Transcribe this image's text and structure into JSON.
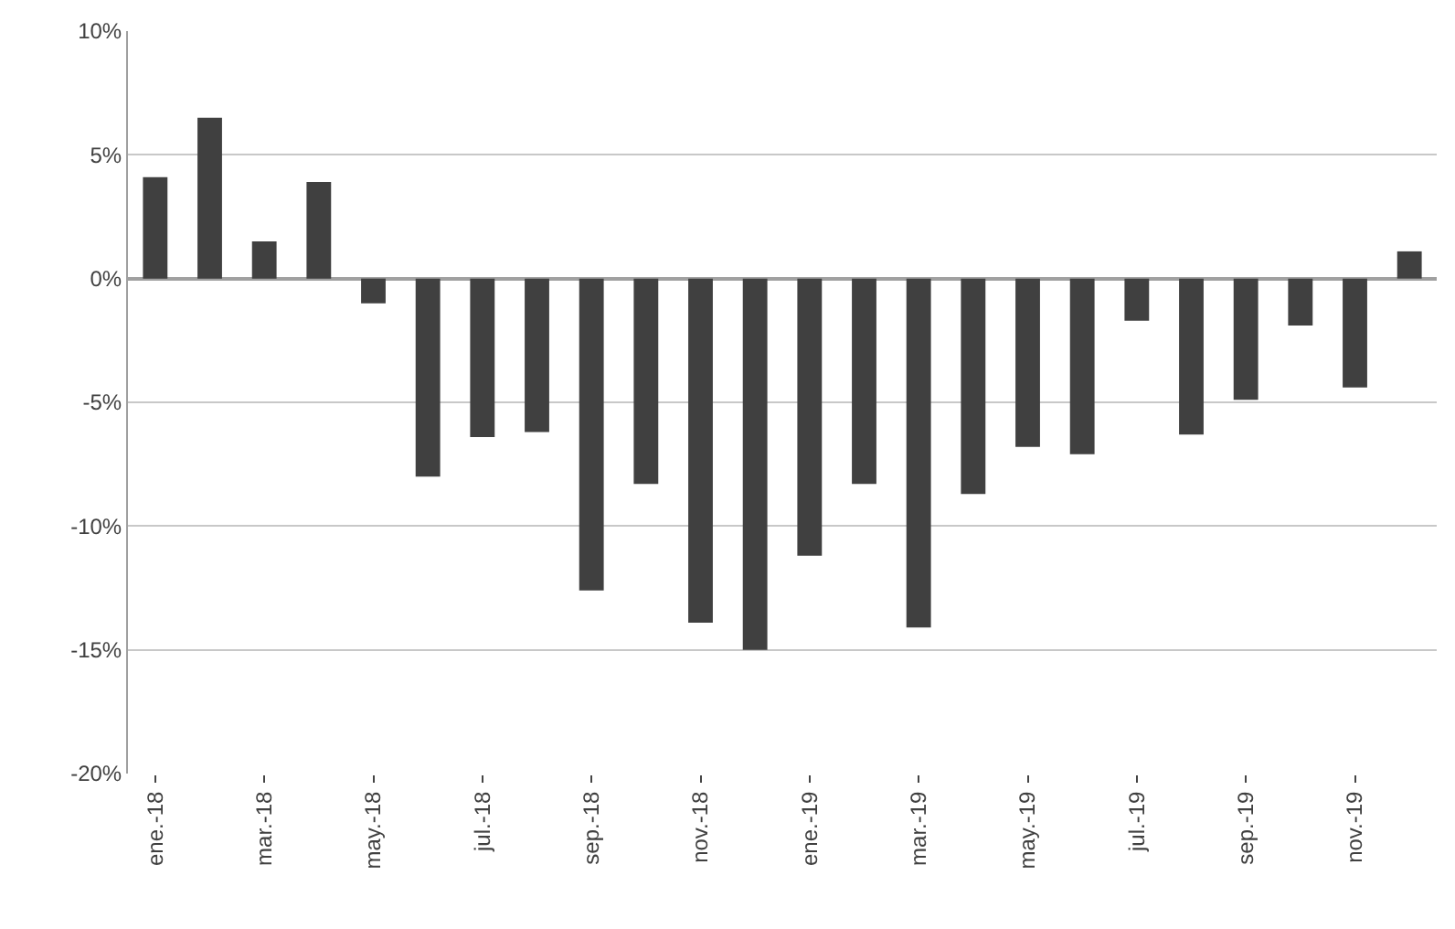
{
  "chart_data": {
    "type": "bar",
    "categories": [
      "ene.-18",
      null,
      "mar.-18",
      null,
      "may.-18",
      null,
      "jul.-18",
      null,
      "sep.-18",
      null,
      "nov.-18",
      null,
      "ene.-19",
      null,
      "mar.-19",
      null,
      "may.-19",
      null,
      "jul.-19",
      null,
      "sep.-19",
      null,
      "nov.-19",
      null
    ],
    "values": [
      4.1,
      6.5,
      1.5,
      3.9,
      -1.0,
      -8.0,
      -6.4,
      -6.2,
      -12.6,
      -8.3,
      -13.9,
      -15.0,
      -11.2,
      -8.3,
      -14.1,
      -8.7,
      -6.8,
      -7.1,
      -1.7,
      -6.3,
      -4.9,
      -1.9,
      -4.4,
      1.1
    ],
    "color": "#404040",
    "ylim": [
      -20,
      10
    ],
    "yticks": [
      {
        "value": -20,
        "label": "-20%"
      },
      {
        "value": -15,
        "label": "-15%"
      },
      {
        "value": -10,
        "label": "-10%"
      },
      {
        "value": -5,
        "label": "-5%"
      },
      {
        "value": 0,
        "label": "0%"
      },
      {
        "value": 5,
        "label": "5%"
      },
      {
        "value": 10,
        "label": "10%"
      }
    ],
    "grid": "y"
  }
}
